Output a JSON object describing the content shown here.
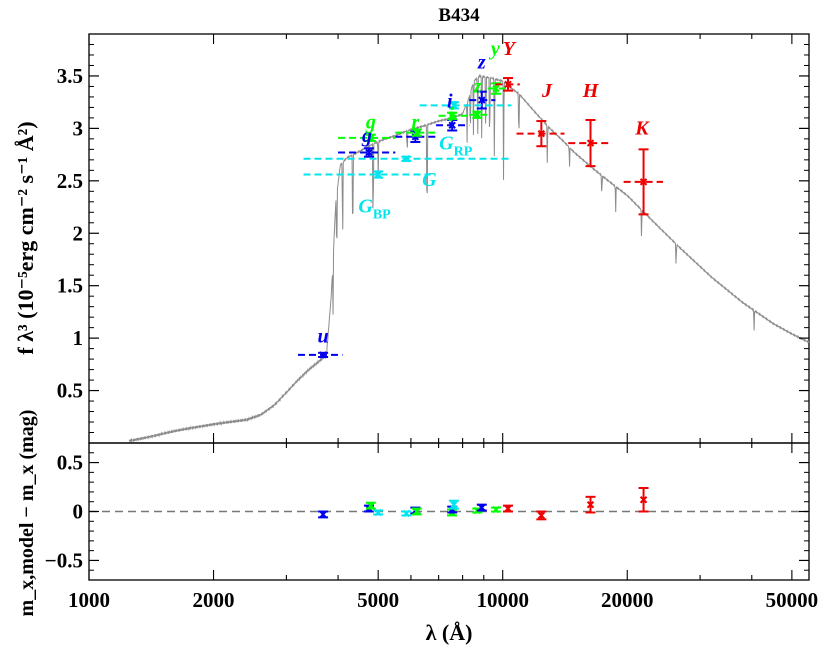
{
  "chart_data": {
    "type": "scatter",
    "title": "B434",
    "xlabel": "λ (Å)",
    "xscale": "log",
    "xlim": [
      1000,
      55000
    ],
    "xticks": [
      "1000",
      "2000",
      "5000",
      "10000",
      "20000",
      "50000"
    ],
    "xtick_values": [
      1000,
      2000,
      5000,
      10000,
      20000,
      50000
    ],
    "top_panel": {
      "ylabel": "f λ³ (10⁻⁵erg cm⁻² s⁻¹ Å²)",
      "ylim": [
        0,
        3.9
      ],
      "yticks": [
        "0.5",
        "1",
        "1.5",
        "2",
        "2.5",
        "3",
        "3.5"
      ],
      "ytick_values": [
        0.5,
        1,
        1.5,
        2,
        2.5,
        3,
        3.5
      ],
      "spectrum_color": "#8c8c8c",
      "spectrum_continuum": [
        [
          1250,
          0.02
        ],
        [
          1400,
          0.06
        ],
        [
          1600,
          0.11
        ],
        [
          1800,
          0.15
        ],
        [
          2000,
          0.18
        ],
        [
          2200,
          0.2
        ],
        [
          2400,
          0.22
        ],
        [
          2600,
          0.27
        ],
        [
          2800,
          0.36
        ],
        [
          3000,
          0.48
        ],
        [
          3200,
          0.6
        ],
        [
          3400,
          0.7
        ],
        [
          3600,
          0.78
        ],
        [
          3750,
          0.84
        ],
        [
          3850,
          1.4
        ],
        [
          3950,
          2.3
        ],
        [
          4050,
          2.65
        ],
        [
          4200,
          2.72
        ],
        [
          4400,
          2.76
        ],
        [
          4600,
          2.8
        ],
        [
          4900,
          2.86
        ],
        [
          5200,
          2.9
        ],
        [
          5500,
          2.93
        ],
        [
          5900,
          2.98
        ],
        [
          6400,
          3.02
        ],
        [
          7000,
          3.07
        ],
        [
          7600,
          3.1
        ],
        [
          8000,
          3.14
        ],
        [
          8300,
          3.3
        ],
        [
          8500,
          3.45
        ],
        [
          8800,
          3.5
        ],
        [
          9400,
          3.48
        ],
        [
          10000,
          3.45
        ],
        [
          11000,
          3.32
        ],
        [
          12000,
          3.15
        ],
        [
          13000,
          3.0
        ],
        [
          14000,
          2.88
        ],
        [
          15000,
          2.76
        ],
        [
          16500,
          2.62
        ],
        [
          18000,
          2.5
        ],
        [
          20000,
          2.36
        ],
        [
          23000,
          2.12
        ],
        [
          27000,
          1.85
        ],
        [
          32000,
          1.58
        ],
        [
          38000,
          1.34
        ],
        [
          45000,
          1.14
        ],
        [
          50000,
          1.04
        ],
        [
          55000,
          0.96
        ]
      ],
      "absorption_lines": [
        [
          3889,
          0.55
        ],
        [
          3970,
          0.75
        ],
        [
          4102,
          0.9
        ],
        [
          4340,
          1.05
        ],
        [
          4861,
          1.0
        ],
        [
          5000,
          0.35
        ],
        [
          5876,
          0.25
        ],
        [
          6563,
          1.2
        ],
        [
          8200,
          0.4
        ],
        [
          8350,
          0.45
        ],
        [
          8500,
          0.55
        ],
        [
          8700,
          0.6
        ],
        [
          8900,
          0.65
        ],
        [
          9100,
          0.7
        ],
        [
          9300,
          0.8
        ],
        [
          9550,
          0.9
        ],
        [
          10050,
          1.0
        ],
        [
          10940,
          0.55
        ],
        [
          12820,
          0.4
        ],
        [
          14500,
          0.2
        ],
        [
          17360,
          0.22
        ],
        [
          18750,
          0.25
        ],
        [
          21660,
          0.3
        ],
        [
          26250,
          0.25
        ],
        [
          40510,
          0.2
        ]
      ],
      "series": [
        {
          "color": "#0000ee",
          "points": [
            {
              "band": "u",
              "x": 3680,
              "y": 0.84,
              "yerr": 0.02,
              "xlo": 3200,
              "xhi": 4100
            },
            {
              "band": "g",
              "x": 4750,
              "y": 2.77,
              "yerr": 0.04,
              "xlo": 4000,
              "xhi": 5500
            },
            {
              "band": "r",
              "x": 6150,
              "y": 2.92,
              "yerr": 0.05,
              "xlo": 5500,
              "xhi": 6900
            },
            {
              "band": "i",
              "x": 7550,
              "y": 3.03,
              "yerr": 0.05,
              "xlo": 6900,
              "xhi": 8300
            },
            {
              "band": "z",
              "x": 8900,
              "y": 3.27,
              "yerr": 0.08,
              "xlo": 8300,
              "xhi": 9600
            }
          ]
        },
        {
          "color": "#00ff00",
          "points": [
            {
              "band": "g",
              "x": 4800,
              "y": 2.91,
              "yerr": 0.03,
              "xlo": 4000,
              "xhi": 5500
            },
            {
              "band": "r",
              "x": 6200,
              "y": 2.96,
              "yerr": 0.03,
              "xlo": 5500,
              "xhi": 7000
            },
            {
              "band": "i",
              "x": 7540,
              "y": 3.12,
              "yerr": 0.03,
              "xlo": 7000,
              "xhi": 8300
            },
            {
              "band": "z",
              "x": 8680,
              "y": 3.13,
              "yerr": 0.03,
              "xlo": 8300,
              "xhi": 9300
            },
            {
              "band": "y",
              "x": 9630,
              "y": 3.38,
              "yerr": 0.05,
              "xlo": 9200,
              "xhi": 10200
            }
          ]
        },
        {
          "color": "#00e5ee",
          "points": [
            {
              "band": "G_BP",
              "x": 5000,
              "y": 2.56,
              "yerr": 0.03,
              "xlo": 3300,
              "xhi": 6700
            },
            {
              "band": "G",
              "x": 5850,
              "y": 2.71,
              "yerr": 0.02,
              "xlo": 3300,
              "xhi": 10500
            },
            {
              "band": "G_RP",
              "x": 7620,
              "y": 3.22,
              "yerr": 0.03,
              "xlo": 6300,
              "xhi": 10500
            }
          ]
        },
        {
          "color": "#ee0000",
          "points": [
            {
              "band": "Y",
              "x": 10300,
              "y": 3.42,
              "yerr": 0.06,
              "xlo": 9600,
              "xhi": 11000
            },
            {
              "band": "J",
              "x": 12400,
              "y": 2.95,
              "yerr": 0.12,
              "xlo": 10800,
              "xhi": 14100
            },
            {
              "band": "H",
              "x": 16300,
              "y": 2.86,
              "yerr": 0.22,
              "xlo": 14400,
              "xhi": 18400
            },
            {
              "band": "K",
              "x": 21900,
              "y": 2.49,
              "yerr": 0.31,
              "xlo": 19600,
              "xhi": 24400
            }
          ]
        }
      ],
      "labels": [
        {
          "text": "u",
          "x": 3680,
          "y": 0.96,
          "color": "#0000ee"
        },
        {
          "text": "g",
          "x": 4700,
          "y": 2.87,
          "color": "#0000ee"
        },
        {
          "text": "g",
          "x": 4800,
          "y": 3.0,
          "color": "#00ff00"
        },
        {
          "text": "r",
          "x": 6150,
          "y": 3.0,
          "color": "#00ff00"
        },
        {
          "text": "i",
          "x": 7450,
          "y": 3.2,
          "color": "#0000ee"
        },
        {
          "text": "i",
          "x": 7500,
          "y": 3.07,
          "color": "#00ff00"
        },
        {
          "text": "z",
          "x": 8900,
          "y": 3.57,
          "color": "#0000ee"
        },
        {
          "text": "z",
          "x": 8700,
          "y": 3.34,
          "color": "#00ff00"
        },
        {
          "text": "y",
          "x": 9600,
          "y": 3.7,
          "color": "#00ff00"
        },
        {
          "text": "Y",
          "x": 10350,
          "y": 3.7,
          "color": "#ee0000"
        },
        {
          "text": "J",
          "x": 12800,
          "y": 3.3,
          "color": "#ee0000"
        },
        {
          "text": "H",
          "x": 16300,
          "y": 3.3,
          "color": "#ee0000"
        },
        {
          "text": "K",
          "x": 21700,
          "y": 2.94,
          "color": "#ee0000"
        },
        {
          "text": "G",
          "x": 6650,
          "y": 2.45,
          "color": "#00e5ee"
        },
        {
          "text": "G_BP",
          "x": 4900,
          "y": 2.2,
          "color": "#00e5ee"
        },
        {
          "text": "G_RP",
          "x": 7700,
          "y": 2.8,
          "color": "#00e5ee"
        }
      ]
    },
    "bottom_panel": {
      "ylabel": "m_x,model − m_x (mag)",
      "ylim": [
        -0.7,
        0.7
      ],
      "yticks": [
        "0.5",
        "0",
        "−0.5"
      ],
      "ytick_values": [
        0.5,
        0,
        -0.5
      ],
      "zero_line": true,
      "residuals": [
        {
          "x": 3680,
          "y": -0.03,
          "yerr": 0.03,
          "color": "#0000ee"
        },
        {
          "x": 4750,
          "y": 0.03,
          "yerr": 0.03,
          "color": "#0000ee"
        },
        {
          "x": 4800,
          "y": 0.06,
          "yerr": 0.03,
          "color": "#00ff00"
        },
        {
          "x": 5000,
          "y": -0.01,
          "yerr": 0.02,
          "color": "#00e5ee"
        },
        {
          "x": 5850,
          "y": -0.02,
          "yerr": 0.02,
          "color": "#00e5ee"
        },
        {
          "x": 6150,
          "y": 0.01,
          "yerr": 0.03,
          "color": "#0000ee"
        },
        {
          "x": 6200,
          "y": 0.0,
          "yerr": 0.03,
          "color": "#00ff00"
        },
        {
          "x": 7540,
          "y": -0.01,
          "yerr": 0.03,
          "color": "#00ff00"
        },
        {
          "x": 7550,
          "y": 0.02,
          "yerr": 0.03,
          "color": "#0000ee"
        },
        {
          "x": 7620,
          "y": 0.07,
          "yerr": 0.04,
          "color": "#00e5ee"
        },
        {
          "x": 8680,
          "y": 0.01,
          "yerr": 0.02,
          "color": "#00ff00"
        },
        {
          "x": 8900,
          "y": 0.04,
          "yerr": 0.03,
          "color": "#0000ee"
        },
        {
          "x": 9630,
          "y": 0.02,
          "yerr": 0.02,
          "color": "#00ff00"
        },
        {
          "x": 10300,
          "y": 0.03,
          "yerr": 0.03,
          "color": "#ee0000"
        },
        {
          "x": 12400,
          "y": -0.04,
          "yerr": 0.04,
          "color": "#ee0000"
        },
        {
          "x": 16300,
          "y": 0.07,
          "yerr": 0.08,
          "color": "#ee0000"
        },
        {
          "x": 21900,
          "y": 0.12,
          "yerr": 0.12,
          "color": "#ee0000"
        }
      ]
    }
  }
}
